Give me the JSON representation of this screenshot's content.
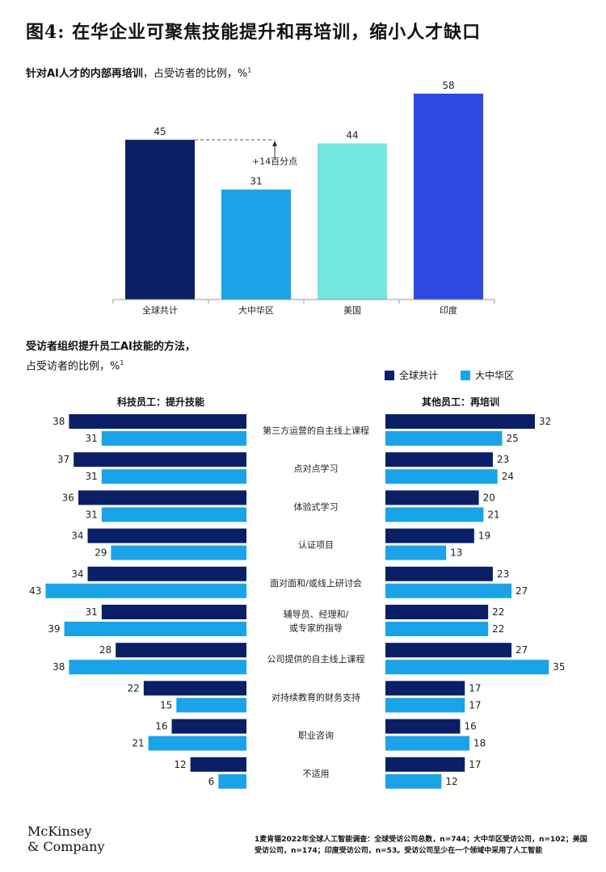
{
  "title": {
    "prefix": "图4:",
    "text": "在华企业可聚焦技能提升和再培训，缩小人才缺口"
  },
  "colors": {
    "global": "#0b1f66",
    "china": "#1aa3e8",
    "us": "#73e6de",
    "india": "#2c49e4",
    "axis": "#999999"
  },
  "chart_data": [
    {
      "type": "bar",
      "title_bold": "针对AI人才的内部再培训",
      "title_rest": "，占受访者的比例，%",
      "title_sup": "1",
      "categories": [
        "全球共计",
        "大中华区",
        "美国",
        "印度"
      ],
      "values": [
        45,
        31,
        44,
        58
      ],
      "ylim": [
        0,
        58
      ],
      "annotation": "+14百分点"
    },
    {
      "type": "bar",
      "orientation": "horizontal",
      "title_bold": "受访者组织提升员工AI技能的方法，",
      "title_line2": "占受访者的比例，%",
      "title_sup": "1",
      "legend_position": "top-right",
      "series_names": [
        "全球共计",
        "大中华区"
      ],
      "categories": [
        "第三方运营的自主线上课程",
        "点对点学习",
        "体验式学习",
        "认证项目",
        "面对面和/或线上研讨会",
        "辅导员、经理和/或专家的指导",
        "公司提供的自主线上课程",
        "对持续教育的财务支持",
        "职业咨询",
        "不适用"
      ],
      "category_lines": [
        [
          "第三方运营的自主线上课程"
        ],
        [
          "点对点学习"
        ],
        [
          "体验式学习"
        ],
        [
          "认证项目"
        ],
        [
          "面对面和/或线上研讨会"
        ],
        [
          "辅导员、经理和/",
          "或专家的指导"
        ],
        [
          "公司提供的自主线上课程"
        ],
        [
          "对持续教育的财务支持"
        ],
        [
          "职业咨询"
        ],
        [
          "不适用"
        ]
      ],
      "panels": [
        {
          "name": "科技员工：提升技能",
          "global": [
            38,
            37,
            36,
            34,
            34,
            31,
            28,
            22,
            16,
            12
          ],
          "china": [
            31,
            31,
            31,
            29,
            43,
            39,
            38,
            15,
            21,
            6
          ]
        },
        {
          "name": "其他员工：再培训",
          "global": [
            32,
            23,
            20,
            19,
            23,
            22,
            27,
            17,
            16,
            17
          ],
          "china": [
            25,
            24,
            21,
            13,
            27,
            22,
            35,
            17,
            18,
            12
          ]
        }
      ]
    }
  ],
  "footnote": "1麦肯锡2022年全球人工智能调查：全球受访公司总数，n=744；大中华区受访公司，n=102；美国受访公司，n=174；印度受访公司，n=53。受访公司至少在一个领域中采用了人工智能",
  "logo": {
    "line1": "McKinsey",
    "line2": "& Company"
  }
}
